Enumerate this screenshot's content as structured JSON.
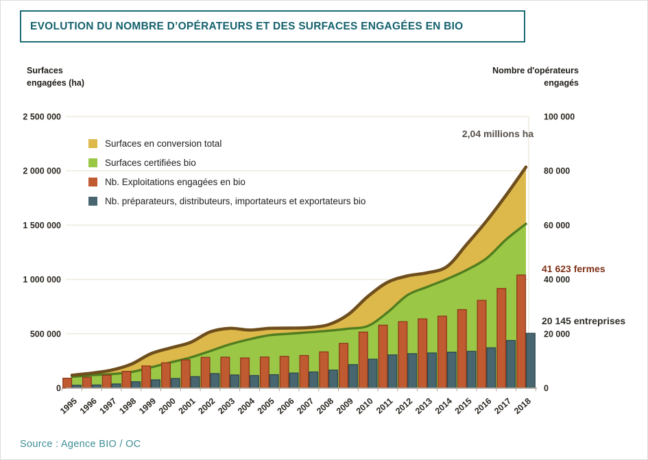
{
  "page": {
    "title": "EVOLUTION DU NOMBRE D’OPÉRATEURS ET DES SURFACES ENGAGÉES EN BIO",
    "source": "Source : Agence BIO / OC"
  },
  "axes": {
    "left_title_line1": "Surfaces",
    "left_title_line2": "engagées (ha)",
    "right_title_line1": "Nombre d'opérateurs",
    "right_title_line2": "engagés"
  },
  "annotations": {
    "peak_surface": "2,04 millions ha",
    "farms": "41 623 fermes",
    "companies": "20 145 entreprises"
  },
  "colors": {
    "title_teal": "#14616D",
    "source_teal": "#3E8D96",
    "gridline": "#EEEADC",
    "axis_line": "#A7A296",
    "conversion_fill": "#DDB84A",
    "total_line": "#6E4E1D",
    "certified_fill": "#9BC747",
    "certified_line": "#4F7D1F",
    "farms_bar": "#C05A30",
    "farms_bar_border": "#8F3C1B",
    "companies_bar": "#48666F",
    "companies_bar_border": "#2E4850",
    "farms_annotation": "#7D2F16",
    "peak_annotation": "#57504A"
  },
  "chart_data": {
    "type": "combo (stacked area left axis + grouped bars right axis)",
    "x": [
      1995,
      1996,
      1997,
      1998,
      1999,
      2000,
      2001,
      2002,
      2003,
      2004,
      2005,
      2006,
      2007,
      2008,
      2009,
      2010,
      2011,
      2012,
      2013,
      2014,
      2015,
      2016,
      2017,
      2018
    ],
    "left_axis": {
      "label": "Surfaces engagées (ha)",
      "min": 0,
      "max": 2500000,
      "ticks": [
        "2 500 000",
        "2 000 000",
        "1 500 000",
        "1 000 000",
        "500 000",
        "0"
      ]
    },
    "right_axis": {
      "label": "Nombre d'opérateurs engagés",
      "min": 0,
      "max": 100000,
      "ticks": [
        "100 000",
        "80 000",
        "60 000",
        "40 000",
        "20 000",
        "0"
      ]
    },
    "series": [
      {
        "name": "Surfaces en conversion total",
        "type": "area-band",
        "axis": "left",
        "color": "#DDB84A",
        "line_color": "#6E4E1D",
        "values": [
          15000,
          19000,
          37000,
          72000,
          126000,
          134000,
          139000,
          177000,
          148000,
          85000,
          64000,
          52000,
          44000,
          56000,
          131000,
          273000,
          277000,
          177000,
          130000,
          116000,
          236000,
          344000,
          409000,
          523000
        ]
      },
      {
        "name": "Surfaces certifiées bio",
        "type": "area",
        "axis": "left",
        "color": "#9BC747",
        "line_color": "#4F7D1F",
        "values": [
          103000,
          118000,
          128000,
          147000,
          190000,
          236000,
          281000,
          340000,
          402000,
          449000,
          486000,
          500000,
          513000,
          528000,
          547000,
          572000,
          698000,
          856000,
          931000,
          1003000,
          1087000,
          1193000,
          1368000,
          1512000
        ]
      },
      {
        "name": "Nb. Exploitations engagées en bio",
        "type": "bar",
        "axis": "right",
        "color": "#C05A30",
        "border": "#8F3C1B",
        "values": [
          3602,
          3977,
          4712,
          6139,
          8140,
          9283,
          10364,
          11288,
          11359,
          11059,
          11402,
          11640,
          11978,
          13298,
          16446,
          20604,
          23135,
          24425,
          25467,
          26466,
          28884,
          32264,
          36664,
          41623
        ]
      },
      {
        "name": "Nb. préparateurs, distributeurs, importateurs et exportateurs bio",
        "type": "bar",
        "axis": "right",
        "color": "#48666F",
        "border": "#2E4850",
        "values": [
          1000,
          1100,
          1500,
          2300,
          3000,
          3500,
          4200,
          5300,
          4800,
          4600,
          4900,
          5500,
          5900,
          6600,
          8600,
          10600,
          12200,
          12650,
          12900,
          13200,
          13500,
          14800,
          17500,
          20145
        ]
      }
    ],
    "derived_totals": {
      "surfaces_totales_engagees_ha": [
        118000,
        137000,
        165000,
        219000,
        316000,
        370000,
        420000,
        517000,
        550000,
        534000,
        550000,
        552000,
        557000,
        584000,
        678000,
        845000,
        975000,
        1033000,
        1061000,
        1119000,
        1323000,
        1537000,
        1777000,
        2035000
      ],
      "note": "brown top line = surfaces certifiées + surfaces en conversion; peak 2018 = 2,04 millions ha"
    },
    "annotations": [
      "2,04 millions ha",
      "41 623 fermes",
      "20 145 entreprises"
    ],
    "grid": "horizontal light beige lines at each 500 000 ha / 20 000 operators",
    "legend_position": "upper-left inside plot"
  }
}
